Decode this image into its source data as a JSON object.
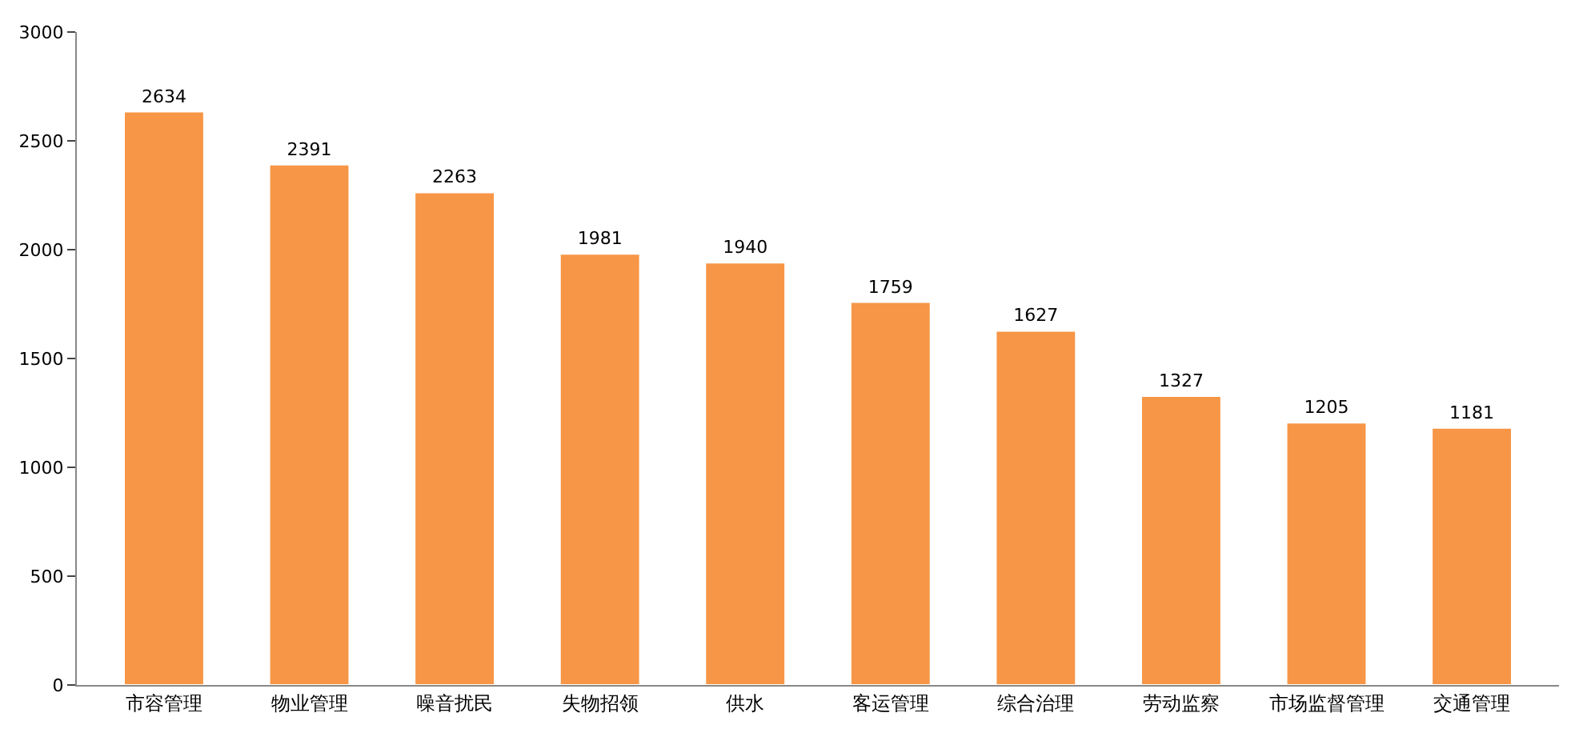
{
  "chart_data": {
    "type": "bar",
    "categories": [
      "市容管理",
      "物业管理",
      "噪音扰民",
      "失物招领",
      "供水",
      "客运管理",
      "综合治理",
      "劳动监察",
      "市场监督管理",
      "交通管理"
    ],
    "values": [
      2634,
      2391,
      2263,
      1981,
      1940,
      1759,
      1627,
      1327,
      1205,
      1181
    ],
    "color": "#f79646",
    "ylim": [
      0,
      3000
    ],
    "yticks": [
      0,
      500,
      1000,
      1500,
      2000,
      2500,
      3000
    ],
    "data_labels": true
  }
}
